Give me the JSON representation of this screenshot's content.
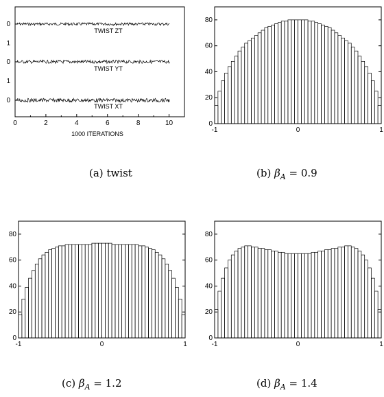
{
  "captions": [
    {
      "label": "(a)",
      "text": "twist"
    },
    {
      "label": "(b)",
      "symbol": "β",
      "sub": "A",
      "eq": "= 0.9"
    },
    {
      "label": "(c)",
      "symbol": "β",
      "sub": "A",
      "eq": "= 1.2"
    },
    {
      "label": "(d)",
      "symbol": "β",
      "sub": "A",
      "eq": "= 1.4"
    }
  ],
  "chart_data": [
    {
      "type": "line",
      "panel": "a",
      "xlabel": "1000   ITERATIONS",
      "xlim": [
        0,
        11
      ],
      "xticks": [
        "0",
        "2",
        "4",
        "6",
        "8",
        "10"
      ],
      "series": [
        {
          "name": "TWIST ZT",
          "baseline_tick": "0",
          "upper_tick": "1",
          "mean": 0,
          "noise_amplitude": 0.05
        },
        {
          "name": "TWIST YT",
          "baseline_tick": "0",
          "upper_tick": "1",
          "mean": 0,
          "noise_amplitude": 0.06
        },
        {
          "name": "TWIST XT",
          "baseline_tick": "0",
          "upper_tick": "",
          "mean": 0,
          "noise_amplitude": 0.07
        }
      ]
    },
    {
      "type": "bar",
      "panel": "b",
      "xlim": [
        -1,
        1
      ],
      "ylim": [
        0,
        90
      ],
      "xticks": [
        "-1",
        "0",
        "1"
      ],
      "yticks": [
        "0",
        "20",
        "40",
        "60",
        "80"
      ],
      "bins": 50,
      "values": [
        14,
        25,
        33,
        39,
        44,
        48,
        52,
        56,
        59,
        62,
        64,
        66,
        68,
        70,
        72,
        74,
        75,
        76,
        77,
        78,
        79,
        79,
        80,
        80,
        80,
        80,
        80,
        80,
        79,
        79,
        78,
        77,
        76,
        75,
        74,
        72,
        70,
        68,
        66,
        64,
        62,
        59,
        56,
        52,
        48,
        44,
        39,
        33,
        25,
        14
      ]
    },
    {
      "type": "bar",
      "panel": "c",
      "xlim": [
        -1,
        1
      ],
      "ylim": [
        0,
        90
      ],
      "xticks": [
        "-1",
        "0",
        "1"
      ],
      "yticks": [
        "0",
        "20",
        "40",
        "60",
        "80"
      ],
      "bins": 50,
      "values": [
        18,
        30,
        39,
        46,
        52,
        57,
        61,
        64,
        66,
        68,
        69,
        70,
        71,
        71,
        72,
        72,
        72,
        72,
        72,
        72,
        72,
        72,
        73,
        73,
        73,
        73,
        73,
        73,
        72,
        72,
        72,
        72,
        72,
        72,
        72,
        72,
        71,
        71,
        70,
        69,
        68,
        66,
        64,
        61,
        57,
        52,
        46,
        39,
        30,
        18
      ]
    },
    {
      "type": "bar",
      "panel": "d",
      "xlim": [
        -1,
        1
      ],
      "ylim": [
        0,
        90
      ],
      "xticks": [
        "-1",
        "0",
        "1"
      ],
      "yticks": [
        "0",
        "20",
        "40",
        "60",
        "80"
      ],
      "bins": 50,
      "values": [
        22,
        36,
        46,
        54,
        60,
        64,
        67,
        69,
        70,
        71,
        71,
        70,
        70,
        69,
        69,
        68,
        68,
        67,
        67,
        66,
        66,
        65,
        65,
        65,
        65,
        65,
        65,
        65,
        65,
        66,
        66,
        67,
        67,
        68,
        68,
        69,
        69,
        70,
        70,
        71,
        71,
        70,
        69,
        67,
        64,
        60,
        54,
        46,
        36,
        22
      ]
    }
  ]
}
